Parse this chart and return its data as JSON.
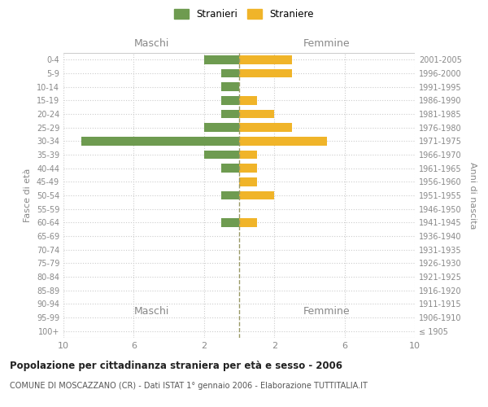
{
  "age_groups": [
    "100+",
    "95-99",
    "90-94",
    "85-89",
    "80-84",
    "75-79",
    "70-74",
    "65-69",
    "60-64",
    "55-59",
    "50-54",
    "45-49",
    "40-44",
    "35-39",
    "30-34",
    "25-29",
    "20-24",
    "15-19",
    "10-14",
    "5-9",
    "0-4"
  ],
  "birth_years": [
    "≤ 1905",
    "1906-1910",
    "1911-1915",
    "1916-1920",
    "1921-1925",
    "1926-1930",
    "1931-1935",
    "1936-1940",
    "1941-1945",
    "1946-1950",
    "1951-1955",
    "1956-1960",
    "1961-1965",
    "1966-1970",
    "1971-1975",
    "1976-1980",
    "1981-1985",
    "1986-1990",
    "1991-1995",
    "1996-2000",
    "2001-2005"
  ],
  "males": [
    0,
    0,
    0,
    0,
    0,
    0,
    0,
    0,
    1,
    0,
    1,
    0,
    1,
    2,
    9,
    2,
    1,
    1,
    1,
    1,
    2
  ],
  "females": [
    0,
    0,
    0,
    0,
    0,
    0,
    0,
    0,
    1,
    0,
    2,
    1,
    1,
    1,
    5,
    3,
    2,
    1,
    0,
    3,
    3
  ],
  "color_male": "#6e9b50",
  "color_female": "#f0b429",
  "title": "Popolazione per cittadinanza straniera per età e sesso - 2006",
  "subtitle": "COMUNE DI MOSCAZZANO (CR) - Dati ISTAT 1° gennaio 2006 - Elaborazione TUTTITALIA.IT",
  "ylabel_left": "Fasce di età",
  "ylabel_right": "Anni di nascita",
  "xlim": 10,
  "legend_male": "Stranieri",
  "legend_female": "Straniere",
  "center_label_left": "Maschi",
  "center_label_right": "Femmine",
  "background_color": "#ffffff",
  "grid_color": "#cccccc",
  "dashed_line_color": "#999966"
}
